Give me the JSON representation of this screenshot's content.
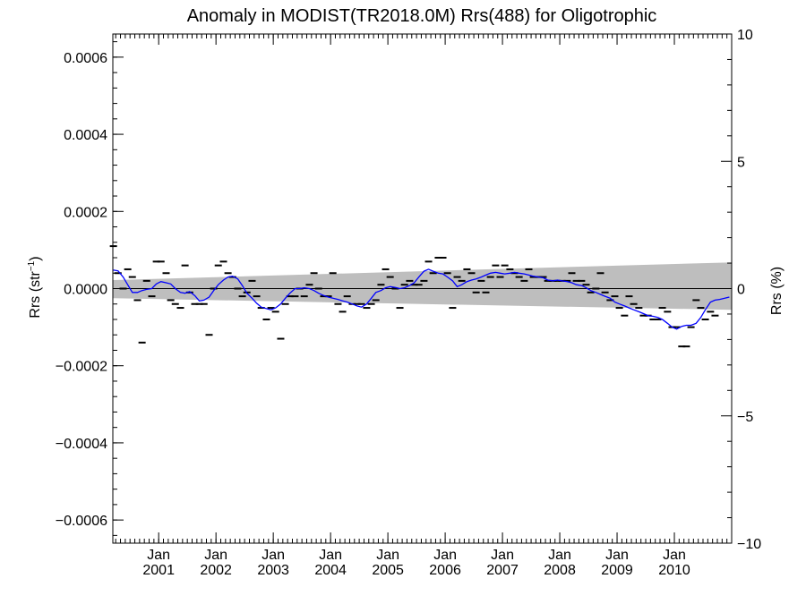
{
  "chart_data": {
    "type": "scatter",
    "title": "Anomaly in MODIST(TR2018.0M) Rrs(488) for Oligotrophic",
    "ylabel": "Rrs (str",
    "ylabel_sup": "−1",
    "ylabel_close": ")",
    "y2label": "Rrs (%)",
    "xlim": [
      2000.2,
      2011.0
    ],
    "ylim": [
      -0.00066,
      0.00066
    ],
    "y2lim": [
      -10,
      10
    ],
    "yticks": [
      {
        "value": 0.0006,
        "label": "0.0006"
      },
      {
        "value": 0.0004,
        "label": "0.0004"
      },
      {
        "value": 0.0002,
        "label": "0.0002"
      },
      {
        "value": 0.0,
        "label": "0.0000"
      },
      {
        "value": -0.0002,
        "label": "−0.0002"
      },
      {
        "value": -0.0004,
        "label": "−0.0004"
      },
      {
        "value": -0.0006,
        "label": "−0.0006"
      }
    ],
    "y2ticks": [
      {
        "value": 10,
        "label": "10"
      },
      {
        "value": 5,
        "label": "5"
      },
      {
        "value": 0,
        "label": "0"
      },
      {
        "value": -5,
        "label": "−5"
      },
      {
        "value": -10,
        "label": "−10"
      }
    ],
    "xticks": [
      {
        "value": 2001.0,
        "month": "Jan",
        "year": "2001"
      },
      {
        "value": 2002.0,
        "month": "Jan",
        "year": "2002"
      },
      {
        "value": 2003.0,
        "month": "Jan",
        "year": "2003"
      },
      {
        "value": 2004.0,
        "month": "Jan",
        "year": "2004"
      },
      {
        "value": 2005.0,
        "month": "Jan",
        "year": "2005"
      },
      {
        "value": 2006.0,
        "month": "Jan",
        "year": "2006"
      },
      {
        "value": 2007.0,
        "month": "Jan",
        "year": "2007"
      },
      {
        "value": 2008.0,
        "month": "Jan",
        "year": "2008"
      },
      {
        "value": 2009.0,
        "month": "Jan",
        "year": "2009"
      },
      {
        "value": 2010.0,
        "month": "Jan",
        "year": "2010"
      }
    ],
    "band": {
      "color": "#bebebe",
      "x": [
        2000.2,
        2011.0
      ],
      "upper": [
        2.2e-05,
        6.8e-05
      ],
      "lower": [
        -2.5e-05,
        -5.5e-05
      ]
    },
    "zero_line": 0.0,
    "points": [
      [
        2000.21,
        0.00011
      ],
      [
        2000.29,
        4e-05
      ],
      [
        2000.38,
        0.0
      ],
      [
        2000.46,
        5e-05
      ],
      [
        2000.54,
        3e-05
      ],
      [
        2000.63,
        -3e-05
      ],
      [
        2000.71,
        -0.00014
      ],
      [
        2000.79,
        2e-05
      ],
      [
        2000.88,
        -2e-05
      ],
      [
        2000.96,
        7e-05
      ],
      [
        2001.04,
        7e-05
      ],
      [
        2001.13,
        4e-05
      ],
      [
        2001.21,
        -3e-05
      ],
      [
        2001.29,
        -4e-05
      ],
      [
        2001.38,
        -5e-05
      ],
      [
        2001.46,
        6e-05
      ],
      [
        2001.54,
        -1e-05
      ],
      [
        2001.63,
        -4e-05
      ],
      [
        2001.71,
        -4e-05
      ],
      [
        2001.79,
        -4e-05
      ],
      [
        2001.88,
        -0.00012
      ],
      [
        2001.96,
        0.0
      ],
      [
        2002.04,
        6e-05
      ],
      [
        2002.13,
        7e-05
      ],
      [
        2002.21,
        4e-05
      ],
      [
        2002.29,
        3e-05
      ],
      [
        2002.38,
        0.0
      ],
      [
        2002.46,
        -2e-05
      ],
      [
        2002.54,
        -1e-05
      ],
      [
        2002.63,
        2e-05
      ],
      [
        2002.71,
        -2e-05
      ],
      [
        2002.79,
        -5e-05
      ],
      [
        2002.88,
        -8e-05
      ],
      [
        2002.96,
        -5e-05
      ],
      [
        2003.04,
        -6e-05
      ],
      [
        2003.13,
        -0.00013
      ],
      [
        2003.21,
        -4e-05
      ],
      [
        2003.29,
        -2e-05
      ],
      [
        2003.38,
        -2e-05
      ],
      [
        2003.46,
        0.0
      ],
      [
        2003.54,
        -2e-05
      ],
      [
        2003.63,
        1e-05
      ],
      [
        2003.71,
        4e-05
      ],
      [
        2003.79,
        0.0
      ],
      [
        2003.88,
        -2e-05
      ],
      [
        2003.96,
        -2e-05
      ],
      [
        2004.04,
        4e-05
      ],
      [
        2004.13,
        -4e-05
      ],
      [
        2004.21,
        -6e-05
      ],
      [
        2004.29,
        -2e-05
      ],
      [
        2004.38,
        -4e-05
      ],
      [
        2004.46,
        -4e-05
      ],
      [
        2004.54,
        -4e-05
      ],
      [
        2004.63,
        -5e-05
      ],
      [
        2004.71,
        -4e-05
      ],
      [
        2004.79,
        -3e-05
      ],
      [
        2004.88,
        1e-05
      ],
      [
        2004.96,
        5e-05
      ],
      [
        2005.04,
        3e-05
      ],
      [
        2005.13,
        0.0
      ],
      [
        2005.21,
        -5e-05
      ],
      [
        2005.29,
        1e-05
      ],
      [
        2005.38,
        2e-05
      ],
      [
        2005.46,
        1e-05
      ],
      [
        2005.54,
        1e-05
      ],
      [
        2005.63,
        2e-05
      ],
      [
        2005.71,
        7e-05
      ],
      [
        2005.79,
        4e-05
      ],
      [
        2005.88,
        8e-05
      ],
      [
        2005.96,
        8e-05
      ],
      [
        2006.04,
        4e-05
      ],
      [
        2006.13,
        -5e-05
      ],
      [
        2006.21,
        3e-05
      ],
      [
        2006.29,
        2e-05
      ],
      [
        2006.38,
        5e-05
      ],
      [
        2006.46,
        4e-05
      ],
      [
        2006.54,
        -1e-05
      ],
      [
        2006.63,
        2e-05
      ],
      [
        2006.71,
        -1e-05
      ],
      [
        2006.79,
        3e-05
      ],
      [
        2006.88,
        6e-05
      ],
      [
        2006.96,
        3e-05
      ],
      [
        2007.04,
        6e-05
      ],
      [
        2007.13,
        5e-05
      ],
      [
        2007.21,
        4e-05
      ],
      [
        2007.29,
        3e-05
      ],
      [
        2007.38,
        2e-05
      ],
      [
        2007.46,
        5e-05
      ],
      [
        2007.54,
        3e-05
      ],
      [
        2007.63,
        3e-05
      ],
      [
        2007.71,
        3e-05
      ],
      [
        2007.79,
        2e-05
      ],
      [
        2007.88,
        2e-05
      ],
      [
        2007.96,
        2e-05
      ],
      [
        2008.04,
        2e-05
      ],
      [
        2008.13,
        2e-05
      ],
      [
        2008.21,
        4e-05
      ],
      [
        2008.29,
        2e-05
      ],
      [
        2008.38,
        2e-05
      ],
      [
        2008.46,
        1e-05
      ],
      [
        2008.54,
        -1e-05
      ],
      [
        2008.63,
        0.0
      ],
      [
        2008.71,
        4e-05
      ],
      [
        2008.79,
        -1e-05
      ],
      [
        2008.88,
        -3e-05
      ],
      [
        2008.96,
        -2e-05
      ],
      [
        2009.04,
        -5e-05
      ],
      [
        2009.13,
        -7e-05
      ],
      [
        2009.21,
        -2e-05
      ],
      [
        2009.29,
        -4e-05
      ],
      [
        2009.38,
        -5e-05
      ],
      [
        2009.46,
        -7e-05
      ],
      [
        2009.54,
        -7e-05
      ],
      [
        2009.63,
        -8e-05
      ],
      [
        2009.71,
        -8e-05
      ],
      [
        2009.79,
        -5e-05
      ],
      [
        2009.88,
        -6e-05
      ],
      [
        2009.96,
        -0.0001
      ],
      [
        2010.04,
        -0.0001
      ],
      [
        2010.13,
        -0.00015
      ],
      [
        2010.21,
        -0.00015
      ],
      [
        2010.29,
        -0.0001
      ],
      [
        2010.38,
        -3e-05
      ],
      [
        2010.46,
        -5e-05
      ],
      [
        2010.54,
        -8e-05
      ],
      [
        2010.63,
        -6e-05
      ],
      [
        2010.71,
        -7e-05
      ]
    ],
    "smooth_line": {
      "color": "#0000ff",
      "points": [
        [
          2000.21,
          4.8e-05
        ],
        [
          2000.29,
          4.6e-05
        ],
        [
          2000.38,
          3e-05
        ],
        [
          2000.46,
          1e-05
        ],
        [
          2000.54,
          -1e-05
        ],
        [
          2000.63,
          -1e-05
        ],
        [
          2000.71,
          -5e-06
        ],
        [
          2000.79,
          -2e-06
        ],
        [
          2000.88,
          0.0
        ],
        [
          2000.96,
          1.2e-05
        ],
        [
          2001.04,
          1.8e-05
        ],
        [
          2001.13,
          1.5e-05
        ],
        [
          2001.21,
          1.2e-05
        ],
        [
          2001.29,
          0.0
        ],
        [
          2001.38,
          -1e-05
        ],
        [
          2001.46,
          -1.2e-05
        ],
        [
          2001.54,
          -8e-06
        ],
        [
          2001.63,
          -1.8e-05
        ],
        [
          2001.71,
          -3.2e-05
        ],
        [
          2001.79,
          -3e-05
        ],
        [
          2001.88,
          -2.2e-05
        ],
        [
          2001.96,
          -5e-06
        ],
        [
          2002.04,
          1e-05
        ],
        [
          2002.13,
          2.2e-05
        ],
        [
          2002.21,
          3e-05
        ],
        [
          2002.29,
          3.2e-05
        ],
        [
          2002.38,
          2.5e-05
        ],
        [
          2002.46,
          8e-06
        ],
        [
          2002.54,
          -1.2e-05
        ],
        [
          2002.63,
          -2.5e-05
        ],
        [
          2002.71,
          -3.8e-05
        ],
        [
          2002.79,
          -4.8e-05
        ],
        [
          2002.88,
          -5.2e-05
        ],
        [
          2002.96,
          -5.5e-05
        ],
        [
          2003.04,
          -5e-05
        ],
        [
          2003.13,
          -4e-05
        ],
        [
          2003.21,
          -2.5e-05
        ],
        [
          2003.29,
          -1.2e-05
        ],
        [
          2003.38,
          0.0
        ],
        [
          2003.46,
          0.0
        ],
        [
          2003.54,
          2e-06
        ],
        [
          2003.63,
          0.0
        ],
        [
          2003.71,
          -5e-06
        ],
        [
          2003.79,
          -1.2e-05
        ],
        [
          2003.88,
          -1.8e-05
        ],
        [
          2003.96,
          -2.2e-05
        ],
        [
          2004.04,
          -2.5e-05
        ],
        [
          2004.13,
          -2.8e-05
        ],
        [
          2004.21,
          -3.2e-05
        ],
        [
          2004.29,
          -3.5e-05
        ],
        [
          2004.38,
          -4e-05
        ],
        [
          2004.46,
          -4.5e-05
        ],
        [
          2004.54,
          -4.8e-05
        ],
        [
          2004.63,
          -4e-05
        ],
        [
          2004.71,
          -2.5e-05
        ],
        [
          2004.79,
          -1e-05
        ],
        [
          2004.88,
          -5e-06
        ],
        [
          2004.96,
          2e-06
        ],
        [
          2005.04,
          5e-06
        ],
        [
          2005.13,
          3e-06
        ],
        [
          2005.21,
          0.0
        ],
        [
          2005.29,
          2e-06
        ],
        [
          2005.38,
          8e-06
        ],
        [
          2005.46,
          1.5e-05
        ],
        [
          2005.54,
          3e-05
        ],
        [
          2005.63,
          4.5e-05
        ],
        [
          2005.71,
          5e-05
        ],
        [
          2005.79,
          4.5e-05
        ],
        [
          2005.88,
          4e-05
        ],
        [
          2005.96,
          3.8e-05
        ],
        [
          2006.04,
          3e-05
        ],
        [
          2006.13,
          2e-05
        ],
        [
          2006.21,
          5e-06
        ],
        [
          2006.29,
          1e-05
        ],
        [
          2006.38,
          1.8e-05
        ],
        [
          2006.46,
          2.2e-05
        ],
        [
          2006.54,
          2.5e-05
        ],
        [
          2006.63,
          3e-05
        ],
        [
          2006.71,
          3.5e-05
        ],
        [
          2006.79,
          4e-05
        ],
        [
          2006.88,
          4.2e-05
        ],
        [
          2006.96,
          4e-05
        ],
        [
          2007.04,
          3.8e-05
        ],
        [
          2007.13,
          4e-05
        ],
        [
          2007.21,
          4.2e-05
        ],
        [
          2007.29,
          4e-05
        ],
        [
          2007.38,
          3.8e-05
        ],
        [
          2007.46,
          3.5e-05
        ],
        [
          2007.54,
          3.2e-05
        ],
        [
          2007.63,
          3e-05
        ],
        [
          2007.71,
          2.8e-05
        ],
        [
          2007.79,
          2.2e-05
        ],
        [
          2007.88,
          2e-05
        ],
        [
          2007.96,
          2.2e-05
        ],
        [
          2008.04,
          2e-05
        ],
        [
          2008.13,
          1.8e-05
        ],
        [
          2008.21,
          1.5e-05
        ],
        [
          2008.29,
          1e-05
        ],
        [
          2008.38,
          8e-06
        ],
        [
          2008.46,
          2e-06
        ],
        [
          2008.54,
          -5e-06
        ],
        [
          2008.63,
          -1e-05
        ],
        [
          2008.71,
          -1.5e-05
        ],
        [
          2008.79,
          -2e-05
        ],
        [
          2008.88,
          -2.5e-05
        ],
        [
          2008.96,
          -3.5e-05
        ],
        [
          2009.04,
          -4e-05
        ],
        [
          2009.13,
          -4.5e-05
        ],
        [
          2009.21,
          -5e-05
        ],
        [
          2009.29,
          -5.5e-05
        ],
        [
          2009.38,
          -6e-05
        ],
        [
          2009.46,
          -6.5e-05
        ],
        [
          2009.54,
          -7e-05
        ],
        [
          2009.63,
          -7.2e-05
        ],
        [
          2009.71,
          -7.5e-05
        ],
        [
          2009.79,
          -8e-05
        ],
        [
          2009.88,
          -9e-05
        ],
        [
          2009.96,
          -0.0001
        ],
        [
          2010.04,
          -0.000105
        ],
        [
          2010.13,
          -9.8e-05
        ],
        [
          2010.21,
          -9.5e-05
        ],
        [
          2010.29,
          -9.5e-05
        ],
        [
          2010.38,
          -9e-05
        ],
        [
          2010.46,
          -7.5e-05
        ],
        [
          2010.54,
          -5.5e-05
        ],
        [
          2010.63,
          -3.5e-05
        ],
        [
          2010.71,
          -3e-05
        ],
        [
          2010.79,
          -2.8e-05
        ],
        [
          2010.88,
          -2.5e-05
        ],
        [
          2010.96,
          -2.2e-05
        ]
      ]
    }
  }
}
